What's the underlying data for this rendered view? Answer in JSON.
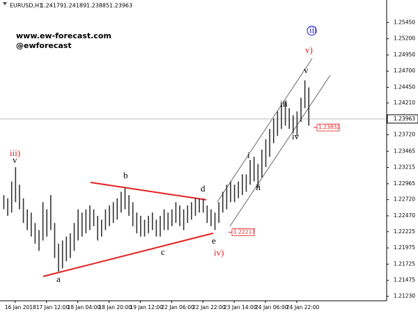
{
  "chart_data": {
    "type": "range-bar",
    "symbol": "EURUSD,H1",
    "quote": [
      1.24179,
      1.24189,
      1.23885,
      1.23963
    ],
    "watermark": [
      "www.ew-forecast.com",
      "@ewforecast"
    ],
    "high": [
      1.2279,
      1.2274,
      1.23,
      1.2322,
      1.2295,
      1.2274,
      1.2257,
      1.2252,
      1.2236,
      1.2225,
      1.2268,
      1.2257,
      1.2279,
      1.2236,
      1.2204,
      1.2209,
      1.2215,
      1.222,
      1.2236,
      1.2257,
      1.2252,
      1.2257,
      1.2263,
      1.2257,
      1.2247,
      1.2241,
      1.2257,
      1.2263,
      1.2268,
      1.2274,
      1.2284,
      1.229,
      1.2279,
      1.2268,
      1.2252,
      1.2247,
      1.2241,
      1.2247,
      1.2252,
      1.2241,
      1.2247,
      1.2257,
      1.2252,
      1.2257,
      1.2268,
      1.2263,
      1.2257,
      1.2263,
      1.2268,
      1.2274,
      1.2274,
      1.2274,
      1.2263,
      1.2257,
      1.2252,
      1.2268,
      1.2284,
      1.2295,
      1.23,
      1.2295,
      1.23,
      1.2311,
      1.2311,
      1.2333,
      1.2338,
      1.2327,
      1.2349,
      1.2365,
      1.2381,
      1.2397,
      1.2408,
      1.2418,
      1.2424,
      1.2413,
      1.2402,
      1.2408,
      1.2429,
      1.2456,
      1.2445
    ],
    "low": [
      1.2257,
      1.2247,
      1.2252,
      1.2268,
      1.2257,
      1.2236,
      1.2225,
      1.2215,
      1.2204,
      1.2193,
      1.2209,
      1.2215,
      1.2225,
      1.2182,
      1.2161,
      1.2166,
      1.2177,
      1.2182,
      1.2193,
      1.2209,
      1.2215,
      1.222,
      1.2225,
      1.2231,
      1.2209,
      1.2215,
      1.2225,
      1.2231,
      1.2236,
      1.2241,
      1.2252,
      1.2257,
      1.2247,
      1.2231,
      1.222,
      1.2215,
      1.2215,
      1.222,
      1.2225,
      1.2215,
      1.2215,
      1.2225,
      1.2225,
      1.2231,
      1.2236,
      1.2231,
      1.2225,
      1.2236,
      1.2241,
      1.2247,
      1.2252,
      1.2252,
      1.2236,
      1.2231,
      1.2225,
      1.2236,
      1.2252,
      1.2257,
      1.2268,
      1.2268,
      1.2274,
      1.2279,
      1.2284,
      1.2295,
      1.23,
      1.229,
      1.2306,
      1.2322,
      1.2338,
      1.2359,
      1.237,
      1.2381,
      1.2386,
      1.2381,
      1.2375,
      1.237,
      1.2392,
      1.2413,
      1.2386
    ],
    "color": "#333333",
    "current_price": 1.23963,
    "price_labels": [
      1.22217,
      1.23832
    ],
    "wave_labels": [
      "iii)",
      "v",
      "a",
      "b",
      "c",
      "d",
      "e",
      "iv)",
      "i",
      "ii",
      "iii",
      "iv",
      "v",
      "v)",
      "iii"
    ],
    "xlim": [
      0,
      98
    ],
    "xticks": [
      {
        "value": 3,
        "label": "16 Jan 2018"
      },
      {
        "value": 11,
        "label": "17 Jan 12:00"
      },
      {
        "value": 19,
        "label": "18 Jan 04:00"
      },
      {
        "value": 27,
        "label": "18 Jan 20:00"
      },
      {
        "value": 35,
        "label": "19 Jan 12:00"
      },
      {
        "value": 43,
        "label": "22 Jan 06:00"
      },
      {
        "value": 51,
        "label": "22 Jan 22:00"
      },
      {
        "value": 59,
        "label": "23 Jan 14:00"
      },
      {
        "value": 67,
        "label": "24 Jan 06:00"
      },
      {
        "value": 75,
        "label": "24 Jan 22:00"
      }
    ],
    "ylim": [
      1.2116,
      1.2569
    ],
    "yticks": [
      {
        "value": 1.2545,
        "label": "1.25450"
      },
      {
        "value": 1.252,
        "label": "1.25200"
      },
      {
        "value": 1.2495,
        "label": "1.24950"
      },
      {
        "value": 1.247,
        "label": "1.24700"
      },
      {
        "value": 1.2445,
        "label": "1.24450"
      },
      {
        "value": 1.2421,
        "label": "1.24210"
      },
      {
        "value": 1.2372,
        "label": "1.23720"
      },
      1.23465,
      1.23215,
      1.22965,
      {
        "value": 1.2272,
        "label": "1.22720"
      },
      {
        "value": 1.2247,
        "label": "1.22470"
      },
      1.22225,
      1.21975,
      1.21725,
      1.21475,
      {
        "value": 1.2123,
        "label": "1.21230"
      }
    ]
  }
}
